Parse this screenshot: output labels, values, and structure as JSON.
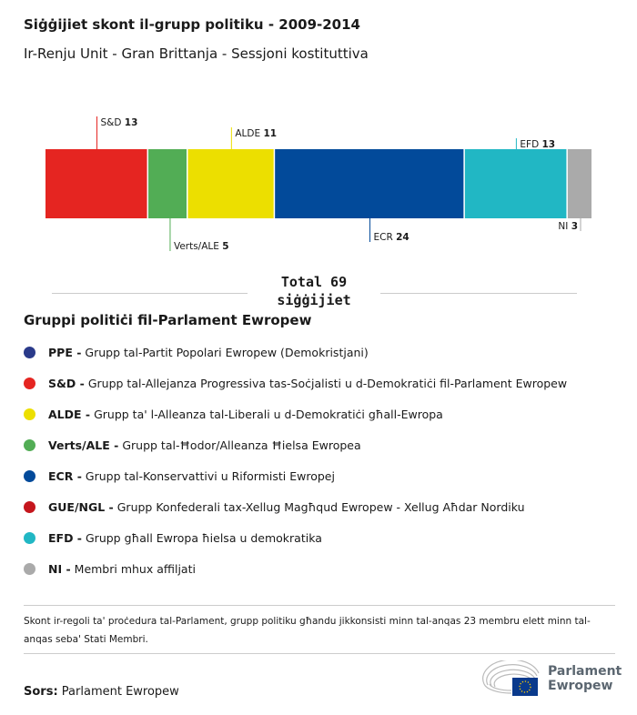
{
  "header": {
    "title": "Siġġijiet skont il-grupp politiku - 2009-2014",
    "subtitle": "Ir-Renju Unit - Gran Brittanja - Sessjoni kostituttiva"
  },
  "chart_data": {
    "type": "bar",
    "orientation": "stacked-horizontal",
    "categories": [
      "S&D",
      "Verts/ALE",
      "ALDE",
      "ECR",
      "EFD",
      "NI"
    ],
    "values": [
      13,
      5,
      11,
      24,
      13,
      3
    ],
    "colors": [
      "#e52521",
      "#52ad55",
      "#ecdf00",
      "#024a9a",
      "#21b7c4",
      "#aaaaaa"
    ],
    "total_label": "Total 69 siġġijiet"
  },
  "legend": {
    "title": "Gruppi politiċi fil-Parlament Ewropew",
    "items": [
      {
        "abbr": "PPE -",
        "name": "Grupp tal-Partit Popolari Ewropew (Demokristjani)",
        "color": "#2a3a8a"
      },
      {
        "abbr": "S&D -",
        "name": "Grupp tal-Allejanza Progressiva tas-Soċjalisti u d-Demokratiċi fil-Parlament Ewropew",
        "color": "#e52521"
      },
      {
        "abbr": "ALDE -",
        "name": "Grupp ta' l-Alleanza tal-Liberali u d-Demokratiċi għall-Ewropa",
        "color": "#ecdf00"
      },
      {
        "abbr": "Verts/ALE -",
        "name": "Grupp tal-Ħodor/Alleanza Ħielsa Ewropea",
        "color": "#52ad55"
      },
      {
        "abbr": "ECR -",
        "name": "Grupp tal-Konservattivi u Riformisti Ewropej",
        "color": "#024a9a"
      },
      {
        "abbr": "GUE/NGL -",
        "name": "Grupp Konfederali tax-Xellug Magħqud Ewropew - Xellug Aħdar Nordiku",
        "color": "#c5161d"
      },
      {
        "abbr": "EFD -",
        "name": "Grupp għall Ewropa ħielsa u demokratika",
        "color": "#21b7c4"
      },
      {
        "abbr": "NI -",
        "name": "Membri mhux affiljati",
        "color": "#aaaaaa"
      }
    ]
  },
  "note": "Skont ir-regoli ta' proċedura tal-Parlament, grupp politiku għandu jikkonsisti minn tal-anqas 23 membru elett minn tal-anqas seba' Stati Membri.",
  "source": {
    "label": "Sors:",
    "value": "Parlament Ewropew"
  },
  "logo": {
    "line1": "Parlament",
    "line2": "Ewropew"
  }
}
